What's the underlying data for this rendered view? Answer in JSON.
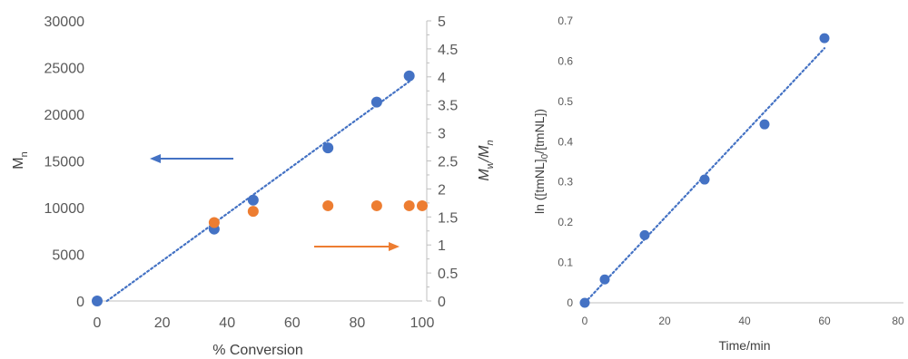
{
  "colors": {
    "blue": "#4472C4",
    "orange": "#ED7D31",
    "axis": "#BFBFBF",
    "text": "#595959"
  },
  "chart_data": [
    {
      "type": "scatter",
      "xlabel": "% Conversion",
      "ylabel": "M",
      "ylabel_sub": "n",
      "y2label_parts": [
        "M",
        "w",
        "/M",
        "n"
      ],
      "xlim": [
        0,
        100
      ],
      "ylim": [
        0,
        30000
      ],
      "y2lim": [
        0,
        5
      ],
      "xticks": [
        "0",
        "20",
        "40",
        "60",
        "80",
        "100"
      ],
      "yticks": [
        "0",
        "5000",
        "10000",
        "15000",
        "20000",
        "25000",
        "30000"
      ],
      "y2ticks": [
        "0",
        "0.5",
        "1",
        "1.5",
        "2",
        "2.5",
        "3",
        "3.5",
        "4",
        "4.5",
        "5"
      ],
      "grid": false,
      "series": [
        {
          "axis": "left",
          "color": "#4472C4",
          "x": [
            0,
            36,
            48,
            71,
            86,
            96
          ],
          "y": [
            0,
            7700,
            10800,
            16400,
            21300,
            24100
          ],
          "trendline": {
            "x": [
              3,
              96
            ],
            "y": [
              0,
              23500
            ]
          }
        },
        {
          "axis": "right",
          "color": "#ED7D31",
          "x": [
            36,
            48,
            71,
            86,
            96,
            100
          ],
          "y": [
            1.4,
            1.6,
            1.7,
            1.7,
            1.7,
            1.7
          ]
        }
      ],
      "annotations": [
        {
          "type": "arrow",
          "direction": "left",
          "color": "#4472C4",
          "points_to": "left-axis"
        },
        {
          "type": "arrow",
          "direction": "right",
          "color": "#ED7D31",
          "points_to": "right-axis"
        }
      ]
    },
    {
      "type": "scatter",
      "xlabel": "Time/min",
      "ylabel": "ln ([tmNL]0/[tmNL])",
      "ylabel_parts": [
        "ln ([tmNL]",
        "0",
        "/[tmNL])"
      ],
      "xlim": [
        0,
        80
      ],
      "ylim": [
        0,
        0.7
      ],
      "xticks": [
        "0",
        "20",
        "40",
        "60",
        "80"
      ],
      "yticks": [
        "0",
        "0.1",
        "0.2",
        "0.3",
        "0.4",
        "0.5",
        "0.6",
        "0.7"
      ],
      "grid": false,
      "series": [
        {
          "color": "#4472C4",
          "x": [
            0,
            5,
            15,
            30,
            45,
            60
          ],
          "y": [
            0,
            0.058,
            0.168,
            0.306,
            0.443,
            0.657
          ],
          "trendline": {
            "x": [
              0,
              60
            ],
            "y": [
              0,
              0.632
            ]
          }
        }
      ]
    }
  ]
}
